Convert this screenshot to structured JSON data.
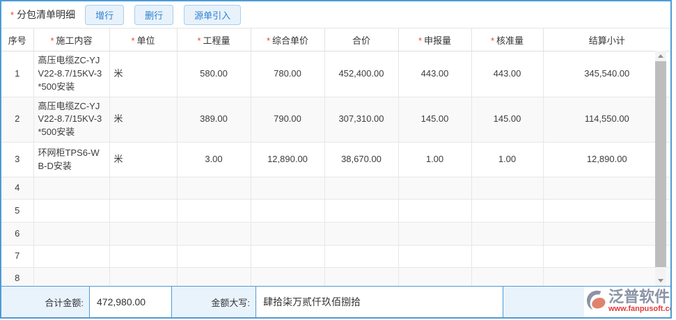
{
  "panel": {
    "required_mark": "*",
    "title": "分包清单明细",
    "buttons": [
      {
        "id": "add-row-button",
        "label": "增行"
      },
      {
        "id": "delete-row-button",
        "label": "删行"
      },
      {
        "id": "source-import-button",
        "label": "源单引入"
      }
    ]
  },
  "table": {
    "columns": [
      {
        "id": "seq",
        "label": "序号",
        "required": false
      },
      {
        "id": "content",
        "label": "施工内容",
        "required": true
      },
      {
        "id": "unit",
        "label": "单位",
        "required": true
      },
      {
        "id": "quantity",
        "label": "工程量",
        "required": true
      },
      {
        "id": "unit_price",
        "label": "综合单价",
        "required": true
      },
      {
        "id": "total",
        "label": "合价",
        "required": false
      },
      {
        "id": "declared",
        "label": "申报量",
        "required": true
      },
      {
        "id": "approved",
        "label": "核准量",
        "required": true
      },
      {
        "id": "subtotal",
        "label": "结算小计",
        "required": false
      }
    ],
    "rows": [
      {
        "seq": "1",
        "content": "高压电缆ZC-YJV22-8.7/15KV-3*500安装",
        "unit": "米",
        "quantity": "580.00",
        "unit_price": "780.00",
        "total": "452,400.00",
        "declared": "443.00",
        "approved": "443.00",
        "subtotal": "345,540.00"
      },
      {
        "seq": "2",
        "content": "高压电缆ZC-YJV22-8.7/15KV-3*500安装",
        "unit": "米",
        "quantity": "389.00",
        "unit_price": "790.00",
        "total": "307,310.00",
        "declared": "145.00",
        "approved": "145.00",
        "subtotal": "114,550.00"
      },
      {
        "seq": "3",
        "content": "环网柜TPS6-WB-D安装",
        "unit": "米",
        "quantity": "3.00",
        "unit_price": "12,890.00",
        "total": "38,670.00",
        "declared": "1.00",
        "approved": "1.00",
        "subtotal": "12,890.00"
      },
      {
        "seq": "4",
        "content": "",
        "unit": "",
        "quantity": "",
        "unit_price": "",
        "total": "",
        "declared": "",
        "approved": "",
        "subtotal": ""
      },
      {
        "seq": "5",
        "content": "",
        "unit": "",
        "quantity": "",
        "unit_price": "",
        "total": "",
        "declared": "",
        "approved": "",
        "subtotal": ""
      },
      {
        "seq": "6",
        "content": "",
        "unit": "",
        "quantity": "",
        "unit_price": "",
        "total": "",
        "declared": "",
        "approved": "",
        "subtotal": ""
      },
      {
        "seq": "7",
        "content": "",
        "unit": "",
        "quantity": "",
        "unit_price": "",
        "total": "",
        "declared": "",
        "approved": "",
        "subtotal": ""
      },
      {
        "seq": "8",
        "content": "",
        "unit": "",
        "quantity": "",
        "unit_price": "",
        "total": "",
        "declared": "",
        "approved": "",
        "subtotal": ""
      }
    ]
  },
  "footer": {
    "total_label": "合计金额:",
    "total_value": "472,980.00",
    "caps_label": "金额大写:",
    "caps_value": "肆拾柒万贰仟玖佰捌拾"
  },
  "logo": {
    "name": "泛普软件",
    "url": "www.fanpusoft.com"
  },
  "colors": {
    "accent_border": "#4e9bd5",
    "button_bg": "#e7f2fb",
    "button_text": "#2f80d2",
    "required_red": "#f04134",
    "footer_bg": "#e9f3fc",
    "stripe_row": "#f9f9f9",
    "logo_gray": "#8b93a6",
    "logo_red": "#e03a3a"
  }
}
